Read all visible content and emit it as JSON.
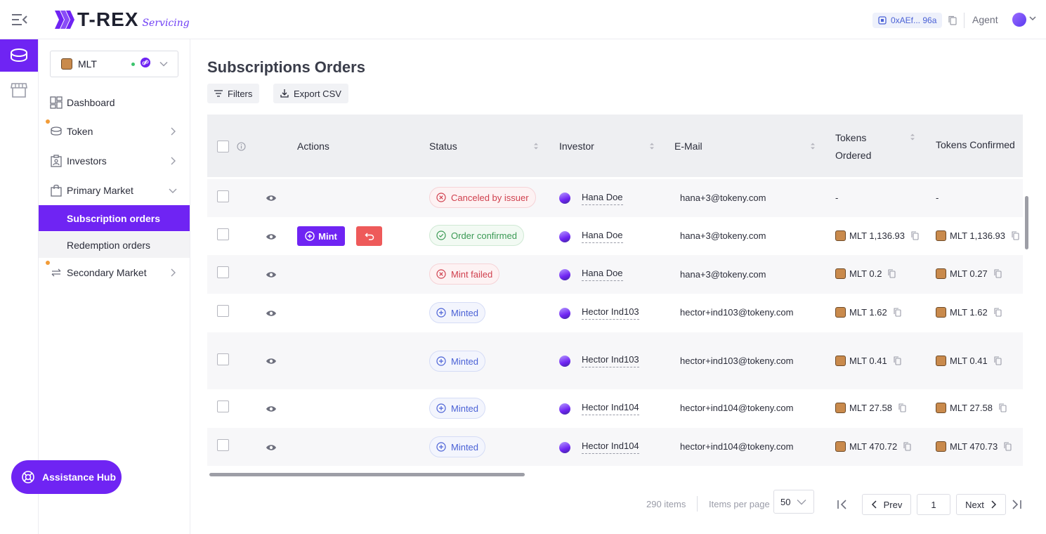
{
  "header": {
    "logo_text": "T-REX",
    "logo_sub": "Servicing",
    "wallet": "0xAEf... 96a",
    "agent": "Agent"
  },
  "colors": {
    "brand": "#6f24f3",
    "cancel": "#d0404e",
    "confirm": "#3b9a55",
    "minted": "#4b62d6",
    "undo": "#ee5a5a"
  },
  "sidebar": {
    "token": "MLT",
    "items": [
      {
        "label": "Dashboard",
        "icon": "dashboard-icon"
      },
      {
        "label": "Token",
        "icon": "token-icon"
      },
      {
        "label": "Investors",
        "icon": "investors-icon"
      },
      {
        "label": "Primary Market",
        "icon": "shopping-bag-icon"
      },
      {
        "label": "Secondary Market",
        "icon": "swap-icon"
      }
    ],
    "sub_items": [
      {
        "label": "Subscription orders"
      },
      {
        "label": "Redemption orders"
      }
    ],
    "assist": "Assistance Hub"
  },
  "main": {
    "title": "Subscriptions Orders",
    "filters": "Filters",
    "export": "Export CSV",
    "columns": {
      "actions": "Actions",
      "status": "Status",
      "investor": "Investor",
      "email": "E-Mail",
      "tokens_ordered_1": "Tokens",
      "tokens_ordered_2": "Ordered",
      "tokens_confirmed": "Tokens Confirmed"
    },
    "rows": [
      {
        "status": "Canceled by issuer",
        "investor": "Hana Doe",
        "email": "hana+3@tokeny.com",
        "ordered": "-",
        "confirmed": "-"
      },
      {
        "status": "Order confirmed",
        "investor": "Hana Doe",
        "email": "hana+3@tokeny.com",
        "ordered": "MLT 1,136.93",
        "confirmed": "MLT 1,136.93",
        "mint": "Mint"
      },
      {
        "status": "Mint failed",
        "investor": "Hana Doe",
        "email": "hana+3@tokeny.com",
        "ordered": "MLT 0.2",
        "confirmed": "MLT 0.27"
      },
      {
        "status": "Minted",
        "investor": "Hector Ind103",
        "email": "hector+ind103@tokeny.com",
        "ordered": "MLT 1.62",
        "confirmed": "MLT 1.62"
      },
      {
        "status": "Minted",
        "investor": "Hector Ind103",
        "email": "hector+ind103@tokeny.com",
        "ordered": "MLT 0.41",
        "confirmed": "MLT 0.41"
      },
      {
        "status": "Minted",
        "investor": "Hector Ind104",
        "email": "hector+ind104@tokeny.com",
        "ordered": "MLT 27.58",
        "confirmed": "MLT 27.58"
      },
      {
        "status": "Minted",
        "investor": "Hector Ind104",
        "email": "hector+ind104@tokeny.com",
        "ordered": "MLT 470.72",
        "confirmed": "MLT 470.73"
      }
    ]
  },
  "pagination": {
    "total": "290 items",
    "per_page_label": "Items per page",
    "per_page": "50",
    "prev": "Prev",
    "page": "1",
    "next": "Next"
  }
}
